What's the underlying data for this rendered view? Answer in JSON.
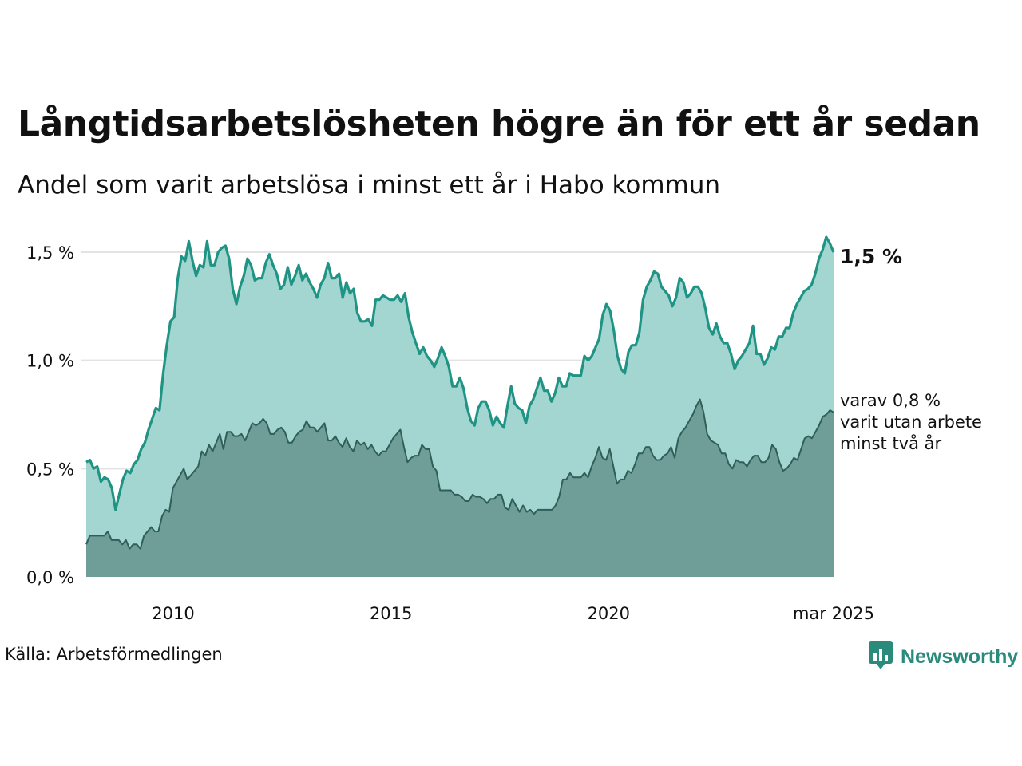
{
  "title": "Långtidsarbetslösheten högre än för ett år sedan",
  "subtitle": "Andel som varit arbetslösa i minst ett år i Habo kommun",
  "source": "Källa: Arbetsförmedlingen",
  "brand": "Newsworthy",
  "colors": {
    "line_main": "#1f9384",
    "area_main": "#a3d6d0",
    "line_sub": "#2f5f57",
    "area_sub": "#6f9e98",
    "grid": "#e3e3e3",
    "brand": "#2a8a7c"
  },
  "chart_data": {
    "type": "area",
    "x_start": "2008-01",
    "x_step": "month",
    "xlim": [
      "2008-01",
      "2025-03"
    ],
    "ylim": [
      0,
      1.6
    ],
    "y_ticks": [
      0.0,
      0.5,
      1.0,
      1.5
    ],
    "y_tick_labels": [
      "0,0 %",
      "0,5 %",
      "1,0 %",
      "1,5 %"
    ],
    "x_ticks": [
      "2010-01",
      "2015-01",
      "2020-01",
      "2025-03"
    ],
    "x_tick_labels": [
      "2010",
      "2015",
      "2020",
      "mar 2025"
    ],
    "grid": true,
    "end_label": "1,5 %",
    "sub_label_lines": [
      "varav 0,8 %",
      "varit utan arbete",
      "minst två år"
    ],
    "series": [
      {
        "values": [
          0.53,
          0.54,
          0.5,
          0.51,
          0.44,
          0.46,
          0.45,
          0.41,
          0.31,
          0.38,
          0.45,
          0.49,
          0.48,
          0.52,
          0.54,
          0.59,
          0.62,
          0.68,
          0.73,
          0.78,
          0.77,
          0.94,
          1.07,
          1.18,
          1.2,
          1.38,
          1.48,
          1.46,
          1.55,
          1.46,
          1.39,
          1.44,
          1.43,
          1.55,
          1.44,
          1.44,
          1.5,
          1.52,
          1.53,
          1.47,
          1.33,
          1.26,
          1.34,
          1.39,
          1.47,
          1.44,
          1.37,
          1.38,
          1.38,
          1.45,
          1.49,
          1.44,
          1.4,
          1.33,
          1.35,
          1.43,
          1.35,
          1.39,
          1.44,
          1.37,
          1.4,
          1.36,
          1.33,
          1.29,
          1.35,
          1.38,
          1.45,
          1.38,
          1.38,
          1.4,
          1.29,
          1.36,
          1.31,
          1.33,
          1.22,
          1.18,
          1.18,
          1.19,
          1.16,
          1.28,
          1.28,
          1.3,
          1.29,
          1.28,
          1.28,
          1.3,
          1.27,
          1.31,
          1.2,
          1.13,
          1.08,
          1.03,
          1.06,
          1.02,
          1.0,
          0.97,
          1.01,
          1.06,
          1.02,
          0.97,
          0.88,
          0.88,
          0.92,
          0.87,
          0.78,
          0.72,
          0.7,
          0.78,
          0.81,
          0.81,
          0.77,
          0.7,
          0.74,
          0.71,
          0.69,
          0.79,
          0.88,
          0.8,
          0.78,
          0.77,
          0.71,
          0.79,
          0.82,
          0.87,
          0.92,
          0.86,
          0.86,
          0.81,
          0.85,
          0.92,
          0.88,
          0.88,
          0.94,
          0.93,
          0.93,
          0.93,
          1.02,
          1.0,
          1.02,
          1.06,
          1.1,
          1.21,
          1.26,
          1.23,
          1.14,
          1.02,
          0.96,
          0.94,
          1.04,
          1.07,
          1.07,
          1.13,
          1.28,
          1.34,
          1.37,
          1.41,
          1.4,
          1.34,
          1.32,
          1.3,
          1.25,
          1.29,
          1.38,
          1.36,
          1.29,
          1.31,
          1.34,
          1.34,
          1.31,
          1.24,
          1.15,
          1.12,
          1.17,
          1.11,
          1.08,
          1.08,
          1.03,
          0.96,
          1.0,
          1.02,
          1.05,
          1.08,
          1.16,
          1.03,
          1.03,
          0.98,
          1.01,
          1.06,
          1.05,
          1.11,
          1.11,
          1.15,
          1.15,
          1.22,
          1.26,
          1.29,
          1.32,
          1.33,
          1.35,
          1.4,
          1.47,
          1.51,
          1.57,
          1.54,
          1.5
        ]
      },
      {
        "values": [
          0.15,
          0.19,
          0.19,
          0.19,
          0.19,
          0.19,
          0.21,
          0.17,
          0.17,
          0.17,
          0.15,
          0.17,
          0.13,
          0.15,
          0.15,
          0.13,
          0.19,
          0.21,
          0.23,
          0.21,
          0.21,
          0.28,
          0.31,
          0.3,
          0.41,
          0.44,
          0.47,
          0.5,
          0.45,
          0.47,
          0.49,
          0.51,
          0.58,
          0.56,
          0.61,
          0.58,
          0.62,
          0.66,
          0.59,
          0.67,
          0.67,
          0.65,
          0.65,
          0.66,
          0.63,
          0.67,
          0.71,
          0.7,
          0.71,
          0.73,
          0.71,
          0.66,
          0.66,
          0.68,
          0.69,
          0.67,
          0.62,
          0.62,
          0.65,
          0.67,
          0.68,
          0.72,
          0.69,
          0.69,
          0.67,
          0.69,
          0.71,
          0.63,
          0.63,
          0.65,
          0.62,
          0.6,
          0.64,
          0.6,
          0.58,
          0.63,
          0.61,
          0.62,
          0.59,
          0.61,
          0.58,
          0.56,
          0.58,
          0.58,
          0.61,
          0.64,
          0.66,
          0.68,
          0.6,
          0.53,
          0.55,
          0.56,
          0.56,
          0.61,
          0.59,
          0.59,
          0.51,
          0.49,
          0.4,
          0.4,
          0.4,
          0.4,
          0.38,
          0.38,
          0.37,
          0.35,
          0.35,
          0.38,
          0.37,
          0.37,
          0.36,
          0.34,
          0.36,
          0.36,
          0.38,
          0.38,
          0.32,
          0.31,
          0.36,
          0.33,
          0.3,
          0.33,
          0.3,
          0.31,
          0.29,
          0.31,
          0.31,
          0.31,
          0.31,
          0.31,
          0.33,
          0.37,
          0.45,
          0.45,
          0.48,
          0.46,
          0.46,
          0.46,
          0.48,
          0.46,
          0.51,
          0.55,
          0.6,
          0.55,
          0.54,
          0.59,
          0.51,
          0.43,
          0.45,
          0.45,
          0.49,
          0.48,
          0.52,
          0.57,
          0.57,
          0.6,
          0.6,
          0.56,
          0.54,
          0.54,
          0.56,
          0.57,
          0.6,
          0.55,
          0.64,
          0.67,
          0.69,
          0.72,
          0.75,
          0.79,
          0.82,
          0.76,
          0.66,
          0.63,
          0.62,
          0.61,
          0.57,
          0.57,
          0.52,
          0.5,
          0.54,
          0.53,
          0.53,
          0.51,
          0.54,
          0.56,
          0.56,
          0.53,
          0.53,
          0.55,
          0.61,
          0.59,
          0.53,
          0.49,
          0.5,
          0.52,
          0.55,
          0.54,
          0.59,
          0.64,
          0.65,
          0.64,
          0.67,
          0.7,
          0.74,
          0.75,
          0.77,
          0.76
        ]
      }
    ]
  }
}
